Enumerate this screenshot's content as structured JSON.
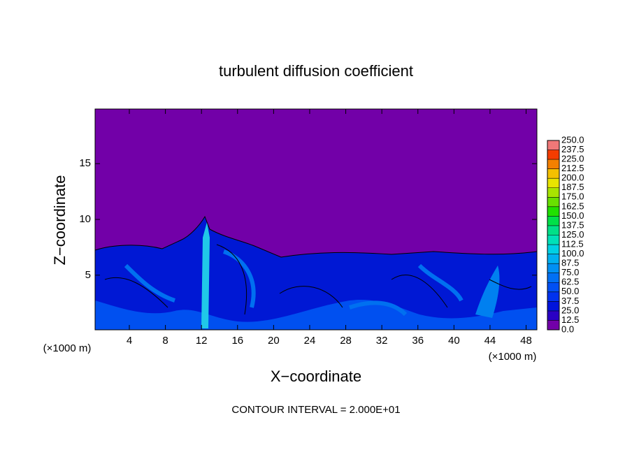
{
  "chart_data": {
    "type": "contour",
    "title": "turbulent diffusion coefficient",
    "xlabel": "X−coordinate",
    "ylabel": "Z−coordinate",
    "y_unit_label": "(×1000 m)",
    "x_unit_label": "(×1000 m)",
    "footnote": "CONTOUR INTERVAL = 2.000E+01",
    "xlim": [
      0.2,
      49.2
    ],
    "ylim": [
      0.1,
      19.9
    ],
    "xticks": [
      4,
      8,
      12,
      16,
      20,
      24,
      28,
      32,
      36,
      40,
      44,
      48
    ],
    "yticks": [
      5,
      10,
      15
    ],
    "colorbar": {
      "levels": [
        {
          "value": 0,
          "label": "0.0"
        },
        {
          "value": 12.5,
          "label": "12.5"
        },
        {
          "value": 25,
          "label": "25.0"
        },
        {
          "value": 37.5,
          "label": "37.5"
        },
        {
          "value": 50,
          "label": "50.0"
        },
        {
          "value": 62.5,
          "label": "62.5"
        },
        {
          "value": 75,
          "label": "75.0"
        },
        {
          "value": 87.5,
          "label": "87.5"
        },
        {
          "value": 100,
          "label": "100.0"
        },
        {
          "value": 112.5,
          "label": "112.5"
        },
        {
          "value": 125,
          "label": "125.0"
        },
        {
          "value": 137.5,
          "label": "137.5"
        },
        {
          "value": 150,
          "label": "150.0"
        },
        {
          "value": 162.5,
          "label": "162.5"
        },
        {
          "value": 175,
          "label": "175.0"
        },
        {
          "value": 187.5,
          "label": "187.5"
        },
        {
          "value": 200,
          "label": "200.0"
        },
        {
          "value": 212.5,
          "label": "212.5"
        },
        {
          "value": 225,
          "label": "225.0"
        },
        {
          "value": 237.5,
          "label": "237.5"
        },
        {
          "value": 250,
          "label": "250.0"
        }
      ],
      "colors": [
        "#7200a8",
        "#2a00c4",
        "#0014dc",
        "#0032ee",
        "#0050f4",
        "#0070f4",
        "#0090f4",
        "#00b0f0",
        "#00d0e4",
        "#00e0b8",
        "#00e088",
        "#00e048",
        "#20e000",
        "#68e000",
        "#a8e400",
        "#e8e400",
        "#f4c000",
        "#f48000",
        "#f43c00",
        "#f07878"
      ]
    }
  }
}
